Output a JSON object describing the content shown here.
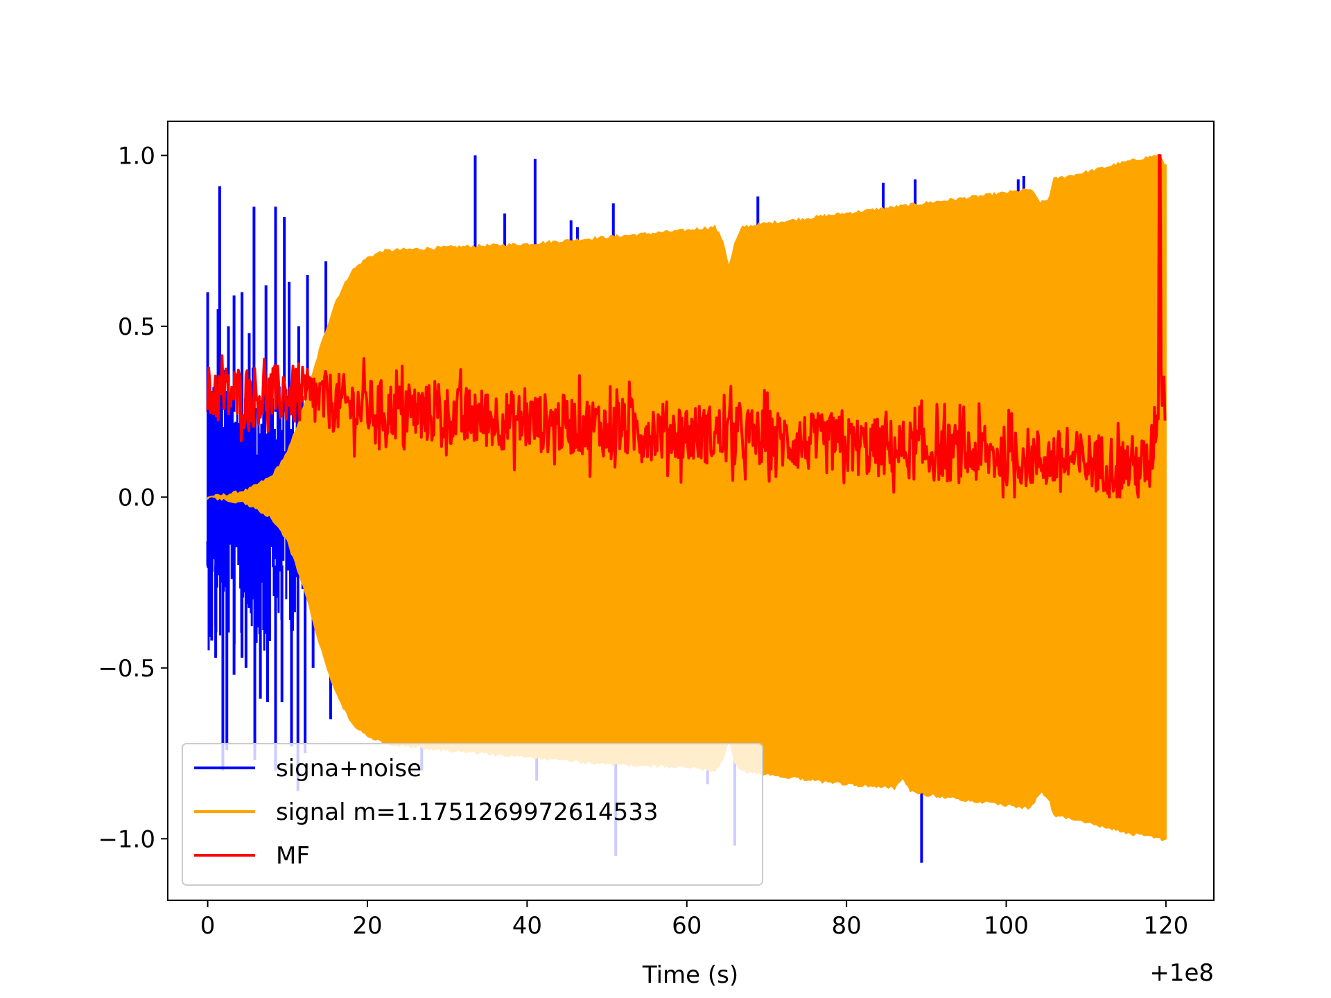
{
  "chart_data": {
    "type": "line",
    "title": "",
    "xlabel": "Time (s)",
    "ylabel": "",
    "x_offset_label": "+1e8",
    "xlim": [
      -5,
      126
    ],
    "ylim": [
      -1.18,
      1.1
    ],
    "xticks": [
      0,
      20,
      40,
      60,
      80,
      100,
      120
    ],
    "xtick_labels": [
      "0",
      "20",
      "40",
      "60",
      "80",
      "100",
      "120"
    ],
    "yticks": [
      1.0,
      0.5,
      0.0,
      -0.5,
      -1.0
    ],
    "ytick_labels": [
      "1.0",
      "0.5",
      "0.0",
      "−0.5",
      "−1.0"
    ],
    "grid": false,
    "legend_position": "lower-left",
    "series": [
      {
        "name": "signa+noise",
        "color": "#0000ff",
        "spikes_positive": [
          [
            0,
            0.6
          ],
          [
            1.3,
            0.55
          ],
          [
            1.5,
            0.91
          ],
          [
            2.6,
            0.5
          ],
          [
            3.3,
            0.59
          ],
          [
            4.3,
            0.6
          ],
          [
            5.2,
            0.48
          ],
          [
            5.8,
            0.85
          ],
          [
            7.3,
            0.62
          ],
          [
            8.5,
            0.85
          ],
          [
            9.6,
            0.82
          ],
          [
            10.2,
            0.63
          ],
          [
            11.4,
            0.5
          ],
          [
            12.5,
            0.65
          ],
          [
            14.8,
            0.69
          ],
          [
            33.5,
            1.0
          ],
          [
            37.2,
            0.83
          ],
          [
            41,
            0.99
          ],
          [
            45.5,
            0.81
          ],
          [
            46.3,
            0.79
          ],
          [
            50.8,
            0.86
          ],
          [
            68.9,
            0.88
          ],
          [
            84.6,
            0.92
          ],
          [
            88.6,
            0.93
          ],
          [
            101.5,
            0.93
          ],
          [
            102.2,
            0.94
          ],
          [
            103.2,
            0.88
          ],
          [
            119.5,
            0.94
          ]
        ],
        "spikes_negative": [
          [
            0,
            -0.13
          ],
          [
            0.5,
            -0.42
          ],
          [
            1,
            -0.47
          ],
          [
            1.9,
            -0.8
          ],
          [
            2.4,
            -0.74
          ],
          [
            3.3,
            -0.52
          ],
          [
            4.3,
            -0.47
          ],
          [
            4.8,
            -0.5
          ],
          [
            5.9,
            -0.77
          ],
          [
            6.6,
            -0.59
          ],
          [
            7.5,
            -0.6
          ],
          [
            8.5,
            -0.8
          ],
          [
            9.3,
            -0.6
          ],
          [
            10.5,
            -0.73
          ],
          [
            11.3,
            -0.86
          ],
          [
            12.2,
            -0.75
          ],
          [
            13.2,
            -0.5
          ],
          [
            15.4,
            -0.65
          ],
          [
            26.8,
            -0.8
          ],
          [
            41.2,
            -0.83
          ],
          [
            51.1,
            -1.05
          ],
          [
            62.6,
            -0.84
          ],
          [
            66,
            -1.02
          ],
          [
            89.4,
            -1.07
          ],
          [
            119.8,
            -0.86
          ]
        ]
      },
      {
        "name": "signal m=1.1751269972614533",
        "color": "#ffa500",
        "envelope_upper": [
          [
            0,
            0.0
          ],
          [
            2,
            0.005
          ],
          [
            5,
            0.02
          ],
          [
            8,
            0.06
          ],
          [
            10,
            0.13
          ],
          [
            12,
            0.26
          ],
          [
            14,
            0.43
          ],
          [
            16,
            0.57
          ],
          [
            18,
            0.66
          ],
          [
            20,
            0.7
          ],
          [
            22,
            0.72
          ],
          [
            30,
            0.73
          ],
          [
            40,
            0.74
          ],
          [
            50,
            0.76
          ],
          [
            60,
            0.78
          ],
          [
            63.5,
            0.79
          ],
          [
            64.5,
            0.75
          ],
          [
            65.3,
            0.67
          ],
          [
            66,
            0.74
          ],
          [
            67,
            0.79
          ],
          [
            70,
            0.8
          ],
          [
            80,
            0.83
          ],
          [
            90,
            0.86
          ],
          [
            100,
            0.89
          ],
          [
            103,
            0.9
          ],
          [
            104.3,
            0.86
          ],
          [
            105.3,
            0.87
          ],
          [
            106,
            0.93
          ],
          [
            110,
            0.95
          ],
          [
            115,
            0.98
          ],
          [
            119,
            1.0
          ],
          [
            120,
            0.97
          ]
        ],
        "envelope_lower": [
          [
            0,
            0.0
          ],
          [
            2,
            -0.005
          ],
          [
            5,
            -0.02
          ],
          [
            8,
            -0.06
          ],
          [
            10,
            -0.13
          ],
          [
            12,
            -0.26
          ],
          [
            14,
            -0.43
          ],
          [
            16,
            -0.57
          ],
          [
            18,
            -0.66
          ],
          [
            20,
            -0.7
          ],
          [
            22,
            -0.72
          ],
          [
            30,
            -0.74
          ],
          [
            40,
            -0.76
          ],
          [
            50,
            -0.78
          ],
          [
            60,
            -0.79
          ],
          [
            63.5,
            -0.8
          ],
          [
            64.5,
            -0.77
          ],
          [
            65.3,
            -0.71
          ],
          [
            66,
            -0.78
          ],
          [
            67,
            -0.8
          ],
          [
            70,
            -0.81
          ],
          [
            80,
            -0.84
          ],
          [
            86,
            -0.85
          ],
          [
            87,
            -0.82
          ],
          [
            88,
            -0.86
          ],
          [
            90,
            -0.87
          ],
          [
            100,
            -0.9
          ],
          [
            103,
            -0.91
          ],
          [
            104.3,
            -0.86
          ],
          [
            105.3,
            -0.88
          ],
          [
            106,
            -0.93
          ],
          [
            110,
            -0.95
          ],
          [
            115,
            -0.98
          ],
          [
            119.3,
            -1.0
          ],
          [
            120,
            -1.0
          ]
        ]
      },
      {
        "name": "MF",
        "color": "#ff0000",
        "trend": [
          [
            0,
            0.3
          ],
          [
            10,
            0.3
          ],
          [
            20,
            0.26
          ],
          [
            40,
            0.22
          ],
          [
            60,
            0.19
          ],
          [
            80,
            0.15
          ],
          [
            100,
            0.12
          ],
          [
            118,
            0.09
          ],
          [
            119.4,
            0.35
          ],
          [
            120,
            0.25
          ]
        ],
        "noise_amplitude": 0.11,
        "peak": [
          119.2,
          1.0
        ]
      }
    ]
  }
}
